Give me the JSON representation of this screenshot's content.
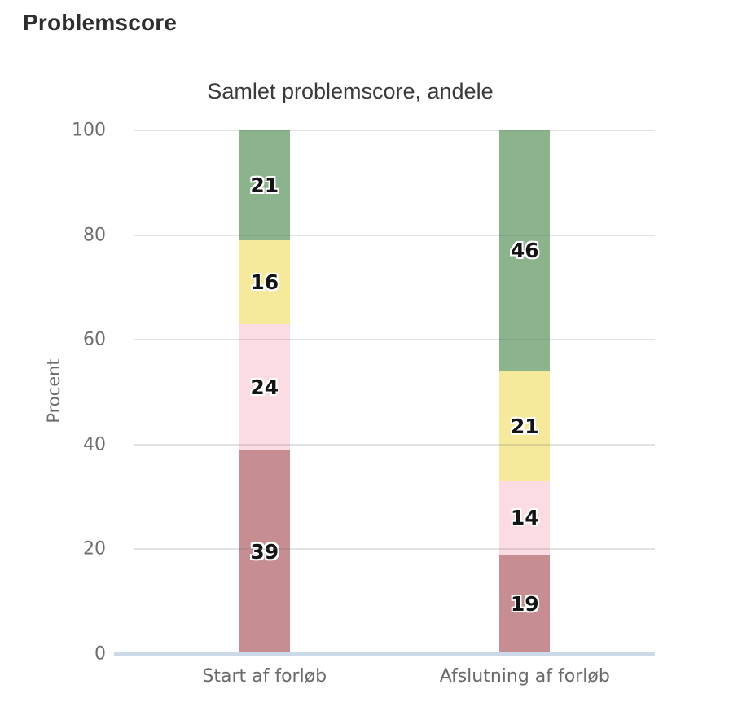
{
  "header": {
    "title": "Problemscore"
  },
  "chart_data": {
    "type": "bar",
    "stacked": true,
    "title": "Samlet problemscore, andele",
    "xlabel": "",
    "ylabel": "Procent",
    "ylim": [
      0,
      100
    ],
    "yticks": [
      0,
      20,
      40,
      60,
      80,
      100
    ],
    "grid": true,
    "legend": false,
    "categories": [
      "Start af forløb",
      "Afslutning af forløb"
    ],
    "series": [
      {
        "name": "rose",
        "color": "#C68D93",
        "values": [
          39,
          19
        ]
      },
      {
        "name": "pink",
        "color": "#FCDCE3",
        "values": [
          24,
          14
        ]
      },
      {
        "name": "yellow",
        "color": "#F6E99C",
        "values": [
          16,
          21
        ]
      },
      {
        "name": "green",
        "color": "#8BB48C",
        "values": [
          21,
          46
        ]
      }
    ],
    "colors": {
      "gridline": "#E0E0E0",
      "baseline": "#CCD9E9",
      "axis_text": "#6E6E6E",
      "title_text": "#3A3A3A",
      "value_label": "#141414"
    }
  }
}
